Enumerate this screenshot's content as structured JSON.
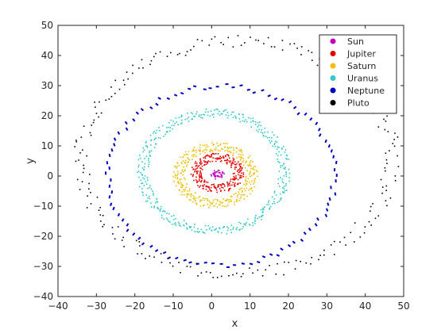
{
  "chart_data": {
    "type": "scatter",
    "title": "",
    "xlabel": "x",
    "ylabel": "y",
    "xlim": [
      -40,
      50
    ],
    "ylim": [
      -40,
      50
    ],
    "xticks": [
      -40,
      -30,
      -20,
      -10,
      0,
      10,
      20,
      30,
      40,
      50
    ],
    "yticks": [
      -40,
      -30,
      -20,
      -10,
      0,
      10,
      20,
      30,
      40,
      50
    ],
    "grid": false,
    "legend_position": "top-right",
    "series": [
      {
        "name": "Sun",
        "color": "#c000c0",
        "orbit": {
          "cx": 1.5,
          "cy": 0.5,
          "rx": 1.2,
          "ry": 1.0,
          "n": 40,
          "width": 0.6
        }
      },
      {
        "name": "Jupiter",
        "color": "#e00000",
        "orbit": {
          "cx": 1.5,
          "cy": 1.0,
          "rx": 5.5,
          "ry": 5.2,
          "n": 260,
          "width": 1.4
        }
      },
      {
        "name": "Saturn",
        "color": "#f0c000",
        "orbit": {
          "cx": 1.0,
          "cy": 0.3,
          "rx": 9.5,
          "ry": 9.5,
          "n": 330,
          "width": 1.6
        }
      },
      {
        "name": "Uranus",
        "color": "#30c8c8",
        "orbit": {
          "cx": 0.5,
          "cy": 1.5,
          "rx": 18.5,
          "ry": 19.5,
          "n": 420,
          "width": 1.5
        }
      },
      {
        "name": "Neptune",
        "color": "#0000c0",
        "orbit": {
          "cx": 2.5,
          "cy": 0.0,
          "rx": 29.5,
          "ry": 29.8,
          "n": 95,
          "width": 0.8
        }
      },
      {
        "name": "Pluto",
        "color": "#000000",
        "orbit": {
          "cx": 6.5,
          "cy": 6.0,
          "rx": 40.5,
          "ry": 38.5,
          "n": 230,
          "width": 2.2
        }
      }
    ]
  }
}
